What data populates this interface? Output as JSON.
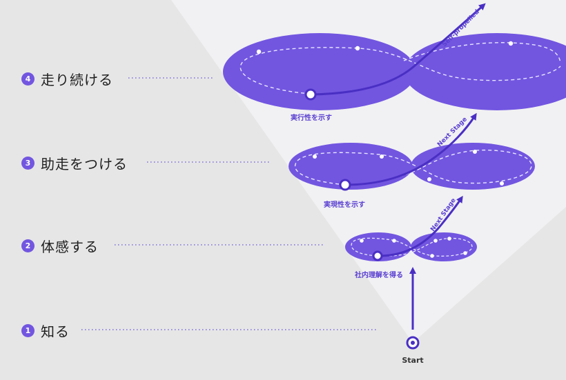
{
  "steps": [
    {
      "number": "1",
      "label": "知る"
    },
    {
      "number": "2",
      "label": "体感する"
    },
    {
      "number": "3",
      "label": "助走をつける"
    },
    {
      "number": "4",
      "label": "走り続ける"
    }
  ],
  "captions": {
    "level1": "社内理解を得る",
    "level2": "実現性を示す",
    "level3": "実行性を示す"
  },
  "arrow_labels": {
    "level1": "Next Stage",
    "level2": "Next Stage",
    "level3": "Self-propelled"
  },
  "start_label": "Start",
  "colors": {
    "background": "#e6e6e6",
    "funnel": "#f1f1f3",
    "lobe": "#7256e0",
    "arrow": "#4a2fc4",
    "dotted_line": "#7a6ad8"
  }
}
